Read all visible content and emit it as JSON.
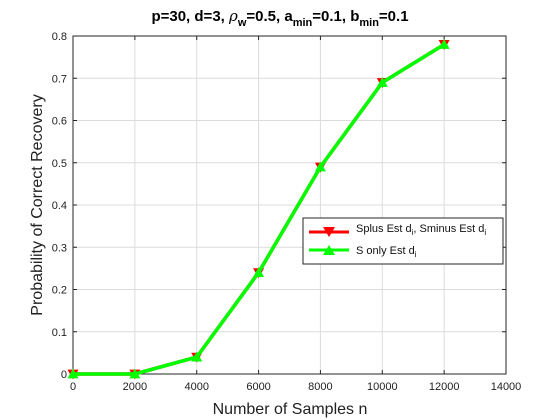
{
  "chart_data": {
    "type": "line",
    "title": {
      "prefix": "p=30,  d=3, ",
      "rho_symbol": "ρ",
      "rho_sub": "w",
      "rho_value": "=0.5, a",
      "a_sub": "min",
      "a_value": "=0.1, b",
      "b_sub": "min",
      "b_value": "=0.1"
    },
    "xlabel": "Number of Samples n",
    "ylabel": "Probability of Correct Recovery",
    "xlim": [
      0,
      14000
    ],
    "ylim": [
      0,
      0.8
    ],
    "xticks": [
      "0",
      "2000",
      "4000",
      "6000",
      "8000",
      "10000",
      "12000",
      "14000"
    ],
    "yticks": [
      "0",
      "0.1",
      "0.2",
      "0.3",
      "0.4",
      "0.5",
      "0.6",
      "0.7",
      "0.8"
    ],
    "grid": true,
    "legend_position": "center-right",
    "x": [
      0,
      2000,
      4000,
      6000,
      8000,
      10000,
      12000
    ],
    "series": [
      {
        "name": "Splus Est d",
        "name_sub": "i",
        "name_mid": ", Sminus Est d",
        "name_sub2": "i",
        "color": "#ff0000",
        "marker": "triangle-down",
        "values": [
          0,
          0,
          0.04,
          0.24,
          0.49,
          0.69,
          0.78
        ]
      },
      {
        "name": "S only Est d",
        "name_sub": "i",
        "color": "#00ff00",
        "marker": "triangle-up",
        "values": [
          0,
          0,
          0.04,
          0.24,
          0.49,
          0.69,
          0.78
        ]
      }
    ]
  }
}
